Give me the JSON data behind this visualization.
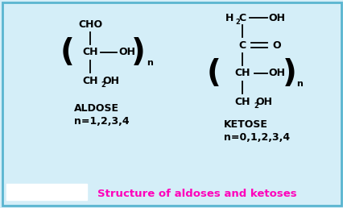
{
  "bg_color": "#d4eef8",
  "border_color": "#5ab5d0",
  "title": "Structure of aldoses and ketoses",
  "title_color": "#ff00bb",
  "title_fontsize": 9.5,
  "aldose_label": "ALDOSE",
  "aldose_n": "n=1,2,3,4",
  "ketose_label": "KETOSE",
  "ketose_n": "n=0,1,2,3,4",
  "label_fontsize": 9,
  "chem_fontsize": 9,
  "sub_fontsize": 6,
  "paren_fontsize": 28,
  "n_fontsize": 8
}
